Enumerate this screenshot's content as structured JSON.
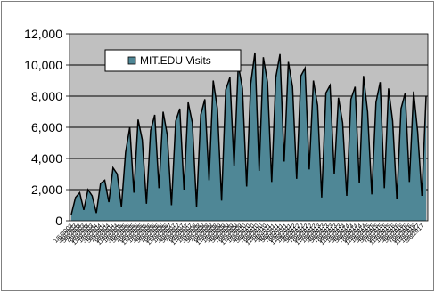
{
  "colors": {
    "plot_background": "#c0c0c0",
    "area_fill": "#4f8796",
    "line": "#000000",
    "gridline": "#000000",
    "outer_border": "#808080"
  },
  "chart_data": {
    "type": "area",
    "title": "",
    "xlabel": "",
    "ylabel": "",
    "ylim": [
      0,
      12000
    ],
    "yticks": [
      0,
      2000,
      4000,
      6000,
      8000,
      10000,
      12000
    ],
    "ytick_labels": [
      "0",
      "2,000",
      "4,000",
      "6,000",
      "8,000",
      "10,000",
      "12,000"
    ],
    "grid": true,
    "legend_position": "top-left",
    "xtick_labels": [
      "1/6/2003",
      "3/6/2003",
      "5/6/2003",
      "7/6/2003",
      "9/6/2003",
      "11/6/2003",
      "1/6/2004",
      "3/6/2004",
      "5/6/2004",
      "7/6/2004",
      "9/6/2004",
      "11/6/2004",
      "1/6/2005",
      "3/6/2005",
      "5/6/2005",
      "7/6/2005",
      "9/6/2005",
      "11/6/2005",
      "1/6/2006",
      "3/6/2006",
      "5/6/2006",
      "7/6/2006",
      "9/6/2006",
      "11/6/2006",
      "1/6/2007",
      "3/6/2007",
      "5/6/2007",
      "7/6/2007",
      "9/6/2007",
      "11/6/2007",
      "1/6/2008",
      "3/6/2008",
      "5/6/2008",
      "7/6/2008",
      "9/6/2008",
      "11/6/2008",
      "1/6/2009",
      "3/6/2009",
      "5/6/2009",
      "7/6/2009",
      "9/6/2009",
      "11/6/2009",
      "1/6/2010",
      "3/6/2010",
      "5/6/2010",
      "7/6/2010",
      "9/6/2010",
      "11/6/2010",
      "1/6/2011",
      "3/6/2011",
      "5/6/2011",
      "7/6/2011",
      "9/6/2011",
      "11/6/2011",
      "1/6/2012",
      "3/6/2012",
      "5/6/2012",
      "7/6/2012",
      "9/6/2012",
      "11/6/2012",
      "1/6/2013",
      "3/6/2013",
      "5/6/2013",
      "7/6/2013",
      "9/6/2013",
      "11/6/2013",
      "1/6/2014",
      "3/6/2014",
      "5/6/2014",
      "7/6/2014",
      "9/6/2014",
      "11/6/2014",
      "1/6/2015",
      "3/6/2015",
      "5/6/2015",
      "7/6/2015",
      "9/6/2015",
      "11/6/2015",
      "1/6/2016",
      "3/6/2016",
      "5/6/2016",
      "7/6/2016",
      "9/6/2016",
      "11/6/2016",
      "1/6/2017",
      "3/6/2017"
    ],
    "series": [
      {
        "name": "MIT.EDU Visits",
        "x": [
          "2003-01",
          "2003-03",
          "2003-05",
          "2003-07",
          "2003-09",
          "2003-11",
          "2004-01",
          "2004-03",
          "2004-05",
          "2004-07",
          "2004-09",
          "2004-11",
          "2005-01",
          "2005-03",
          "2005-05",
          "2005-07",
          "2005-09",
          "2005-11",
          "2006-01",
          "2006-03",
          "2006-05",
          "2006-07",
          "2006-09",
          "2006-11",
          "2007-01",
          "2007-03",
          "2007-05",
          "2007-07",
          "2007-09",
          "2007-11",
          "2008-01",
          "2008-03",
          "2008-05",
          "2008-07",
          "2008-09",
          "2008-11",
          "2009-01",
          "2009-03",
          "2009-05",
          "2009-07",
          "2009-09",
          "2009-11",
          "2010-01",
          "2010-03",
          "2010-05",
          "2010-07",
          "2010-09",
          "2010-11",
          "2011-01",
          "2011-03",
          "2011-05",
          "2011-07",
          "2011-09",
          "2011-11",
          "2012-01",
          "2012-03",
          "2012-05",
          "2012-07",
          "2012-09",
          "2012-11",
          "2013-01",
          "2013-03",
          "2013-05",
          "2013-07",
          "2013-09",
          "2013-11",
          "2014-01",
          "2014-03",
          "2014-05",
          "2014-07",
          "2014-09",
          "2014-11",
          "2015-01",
          "2015-03",
          "2015-05",
          "2015-07",
          "2015-09",
          "2015-11",
          "2016-01",
          "2016-03",
          "2016-05",
          "2016-07",
          "2016-09",
          "2016-11",
          "2017-01",
          "2017-03"
        ],
        "values": [
          400,
          1500,
          1800,
          700,
          2000,
          1600,
          500,
          2400,
          2600,
          1200,
          3400,
          3000,
          900,
          4400,
          6000,
          1800,
          6500,
          5200,
          1100,
          5800,
          6800,
          2100,
          7000,
          5500,
          1000,
          6400,
          7200,
          2000,
          7600,
          6300,
          900,
          6800,
          7800,
          2600,
          9000,
          7200,
          1300,
          8400,
          9200,
          3500,
          10000,
          8500,
          2200,
          8800,
          10800,
          3200,
          10500,
          8900,
          2500,
          9200,
          10700,
          3800,
          10200,
          8600,
          2700,
          9300,
          9800,
          3300,
          9000,
          7400,
          1500,
          8200,
          8700,
          3000,
          7900,
          6300,
          1600,
          7800,
          8600,
          2400,
          9300,
          7000,
          1700,
          7600,
          8900,
          2100,
          8500,
          6400,
          1400,
          7200,
          8200,
          2500,
          8300,
          5700,
          1600,
          8000
        ]
      }
    ]
  }
}
